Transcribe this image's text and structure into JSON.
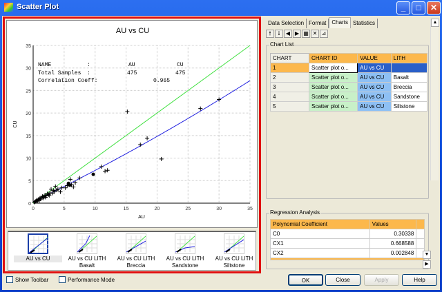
{
  "window": {
    "title": "Scatter Plot",
    "icon": "scatter-app-icon"
  },
  "colors": {
    "accent_frame": "#e01010",
    "header_orange": "#fcb84c",
    "chartid_green": "#c8f0c8",
    "value_blue": "#8ec0f4",
    "selected_blue": "#2a5fc8",
    "regression_line": "#2020e0",
    "identity_line": "#40e040"
  },
  "chart_data": {
    "type": "scatter",
    "title": "AU vs CU",
    "xlabel": "AU",
    "ylabel": "CU",
    "xlim": [
      0,
      35
    ],
    "ylim": [
      0,
      35
    ],
    "xticks": [
      0,
      5,
      10,
      15,
      20,
      25,
      30,
      35
    ],
    "yticks": [
      0,
      5,
      10,
      15,
      20,
      25,
      30,
      35
    ],
    "grid": true,
    "stats": {
      "name_label": "NAME",
      "name_x": "AU",
      "name_y": "CU",
      "samples_label": "Total Samples",
      "samples_x": "475",
      "samples_y": "475",
      "corr_label": "Correlation Coeff:",
      "corr_value": "0.965",
      "sep": ":"
    },
    "points_cross": [
      [
        15.2,
        20.3
      ],
      [
        27,
        21
      ],
      [
        30,
        23
      ],
      [
        17.3,
        13
      ],
      [
        18.4,
        14.4
      ],
      [
        20.7,
        9.8
      ],
      [
        11,
        8.1
      ],
      [
        11.6,
        7.1
      ],
      [
        12,
        7.3
      ],
      [
        7.5,
        5.6
      ],
      [
        6,
        5.3
      ],
      [
        6.8,
        4.5
      ],
      [
        6.5,
        3.6
      ],
      [
        6.2,
        4.1
      ],
      [
        5.2,
        3.4
      ],
      [
        4.4,
        2.5
      ],
      [
        4.6,
        3.4
      ],
      [
        3.6,
        3.7
      ],
      [
        4,
        3.1
      ],
      [
        3.3,
        2.8
      ],
      [
        2.9,
        3.1
      ],
      [
        3.1,
        2.2
      ],
      [
        2.7,
        2.3
      ],
      [
        2.5,
        1.9
      ],
      [
        2.3,
        2.1
      ],
      [
        2.1,
        1.6
      ],
      [
        1.9,
        1.8
      ],
      [
        1.7,
        1.4
      ],
      [
        1.5,
        1.5
      ],
      [
        1.3,
        1.2
      ],
      [
        1.1,
        1.1
      ],
      [
        0.9,
        0.9
      ],
      [
        0.8,
        0.7
      ],
      [
        0.6,
        0.7
      ],
      [
        0.5,
        0.5
      ],
      [
        0.4,
        0.4
      ],
      [
        0.3,
        0.3
      ],
      [
        0.2,
        0.2
      ],
      [
        1.2,
        0.9
      ],
      [
        1.6,
        1.1
      ],
      [
        2.0,
        1.3
      ],
      [
        2.6,
        1.7
      ],
      [
        3.4,
        2.5
      ],
      [
        3.8,
        2.9
      ],
      [
        5.5,
        3.9
      ],
      [
        5.8,
        4.1
      ],
      [
        1.0,
        0.6
      ],
      [
        0.7,
        0.5
      ]
    ],
    "points_filled": [
      [
        9.7,
        6.4
      ],
      [
        5.7,
        4.4
      ],
      [
        5.9,
        4.0
      ]
    ],
    "regression": {
      "c0": 0.30338,
      "cx1": 0.668588,
      "cx2": 0.002848
    },
    "identity_line": true
  },
  "thumbnails": [
    {
      "line1": "AU vs CU",
      "line2": "",
      "selected": true
    },
    {
      "line1": "AU vs CU LITH",
      "line2": "Basalt",
      "selected": false
    },
    {
      "line1": "AU vs CU LITH",
      "line2": "Breccia",
      "selected": false
    },
    {
      "line1": "AU vs CU LITH",
      "line2": "Sandstone",
      "selected": false
    },
    {
      "line1": "AU vs CU LITH",
      "line2": "Siltstone",
      "selected": false
    }
  ],
  "tabs": [
    {
      "label": "Data Selection",
      "active": false
    },
    {
      "label": "Format",
      "active": false
    },
    {
      "label": "Charts",
      "active": true
    },
    {
      "label": "Statistics",
      "active": false
    }
  ],
  "toolbar_icons": [
    "arrow-up-icon",
    "arrow-down-icon",
    "arrow-left-icon",
    "arrow-right-icon",
    "table-icon",
    "delete-icon",
    "chart-icon"
  ],
  "toolbar_glyphs": [
    "🠕",
    "🠗",
    "◀",
    "▶",
    "▦",
    "✕",
    "⊿"
  ],
  "chart_list": {
    "label": "Chart List",
    "columns": [
      "CHART",
      "CHART ID",
      "VALUE",
      "LITH"
    ],
    "rows": [
      [
        "1",
        "Scatter plot o...",
        "AU vs CU",
        ""
      ],
      [
        "2",
        "Scatter plot o...",
        "AU vs CU",
        "Basalt"
      ],
      [
        "3",
        "Scatter plot o...",
        "AU vs CU",
        "Breccia"
      ],
      [
        "4",
        "Scatter plot o...",
        "AU vs CU",
        "Sandstone"
      ],
      [
        "5",
        "Scatter plot o...",
        "AU vs CU",
        "Siltstone"
      ]
    ]
  },
  "regression": {
    "label": "Regression Analysis",
    "columns": [
      "Polynomial Coefficient",
      "Values"
    ],
    "rows": [
      [
        "C0",
        "0.30338"
      ],
      [
        "CX1",
        "0.668588"
      ],
      [
        "CX2",
        "0.002848"
      ]
    ]
  },
  "footer": {
    "show_toolbar": "Show Toolbar",
    "performance_mode": "Performance Mode",
    "ok": "OK",
    "close": "Close",
    "apply": "Apply",
    "help": "Help"
  }
}
